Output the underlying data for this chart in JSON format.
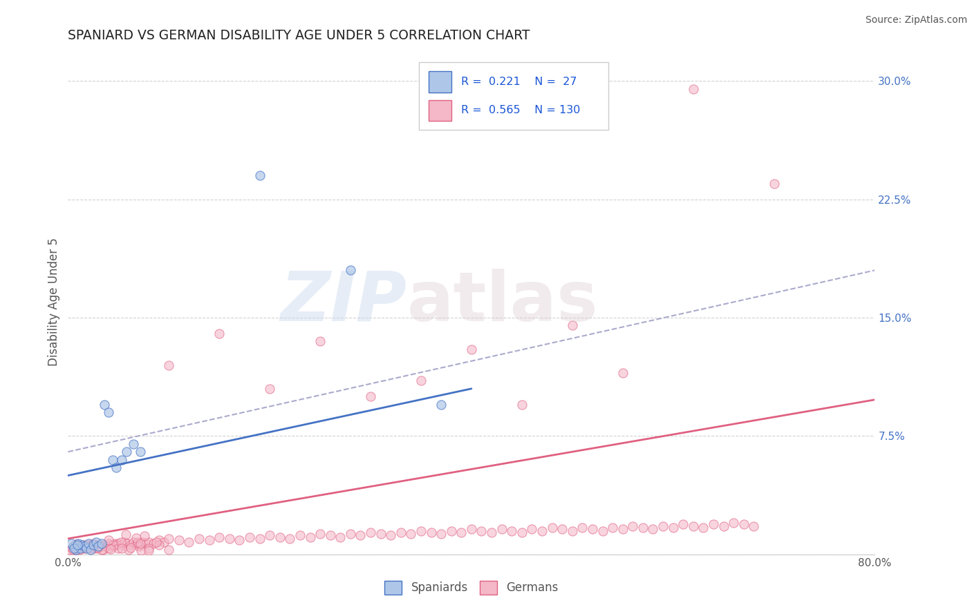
{
  "title": "SPANIARD VS GERMAN DISABILITY AGE UNDER 5 CORRELATION CHART",
  "source": "Source: ZipAtlas.com",
  "ylabel": "Disability Age Under 5",
  "xlim": [
    0.0,
    0.8
  ],
  "ylim": [
    0.0,
    0.32
  ],
  "spaniard_color": "#aec6e8",
  "german_color": "#f4b8c8",
  "spaniard_edge_color": "#4472C4",
  "german_edge_color": "#E06080",
  "spaniard_line_color": "#4472C4",
  "german_line_color": "#E06080",
  "trend_line_color": "#aaaacc",
  "background_color": "#ffffff",
  "grid_color": "#cccccc",
  "spaniard_x": [
    0.005,
    0.008,
    0.01,
    0.012,
    0.014,
    0.016,
    0.018,
    0.02,
    0.022,
    0.025,
    0.028,
    0.03,
    0.033,
    0.036,
    0.04,
    0.044,
    0.048,
    0.053,
    0.058,
    0.065,
    0.072,
    0.003,
    0.006,
    0.009,
    0.19,
    0.28,
    0.37
  ],
  "spaniard_y": [
    0.005,
    0.003,
    0.007,
    0.004,
    0.006,
    0.005,
    0.004,
    0.007,
    0.003,
    0.006,
    0.008,
    0.005,
    0.007,
    0.095,
    0.09,
    0.06,
    0.055,
    0.06,
    0.065,
    0.07,
    0.065,
    0.007,
    0.004,
    0.006,
    0.24,
    0.18,
    0.095
  ],
  "german_x": [
    0.002,
    0.004,
    0.005,
    0.006,
    0.007,
    0.008,
    0.009,
    0.01,
    0.011,
    0.012,
    0.013,
    0.014,
    0.015,
    0.016,
    0.017,
    0.018,
    0.019,
    0.02,
    0.021,
    0.022,
    0.023,
    0.024,
    0.025,
    0.026,
    0.027,
    0.028,
    0.029,
    0.03,
    0.032,
    0.034,
    0.036,
    0.038,
    0.04,
    0.042,
    0.044,
    0.046,
    0.048,
    0.05,
    0.053,
    0.056,
    0.059,
    0.062,
    0.065,
    0.068,
    0.071,
    0.074,
    0.077,
    0.08,
    0.085,
    0.09,
    0.095,
    0.1,
    0.11,
    0.12,
    0.13,
    0.14,
    0.15,
    0.16,
    0.17,
    0.18,
    0.19,
    0.2,
    0.21,
    0.22,
    0.23,
    0.24,
    0.25,
    0.26,
    0.27,
    0.28,
    0.29,
    0.3,
    0.31,
    0.32,
    0.33,
    0.34,
    0.35,
    0.36,
    0.37,
    0.38,
    0.39,
    0.4,
    0.41,
    0.42,
    0.43,
    0.44,
    0.45,
    0.46,
    0.47,
    0.48,
    0.49,
    0.5,
    0.51,
    0.52,
    0.53,
    0.54,
    0.55,
    0.56,
    0.57,
    0.58,
    0.59,
    0.6,
    0.61,
    0.62,
    0.63,
    0.64,
    0.65,
    0.66,
    0.67,
    0.68,
    0.1,
    0.15,
    0.2,
    0.25,
    0.3,
    0.35,
    0.4,
    0.45,
    0.5,
    0.55,
    0.03,
    0.035,
    0.04,
    0.045,
    0.05,
    0.06,
    0.07,
    0.08,
    0.09,
    0.1
  ],
  "german_y": [
    0.003,
    0.004,
    0.003,
    0.005,
    0.004,
    0.003,
    0.005,
    0.004,
    0.006,
    0.004,
    0.005,
    0.004,
    0.006,
    0.005,
    0.004,
    0.006,
    0.005,
    0.004,
    0.006,
    0.005,
    0.004,
    0.006,
    0.005,
    0.004,
    0.006,
    0.005,
    0.004,
    0.005,
    0.006,
    0.005,
    0.006,
    0.005,
    0.007,
    0.006,
    0.005,
    0.007,
    0.006,
    0.007,
    0.006,
    0.008,
    0.007,
    0.006,
    0.008,
    0.007,
    0.006,
    0.008,
    0.007,
    0.008,
    0.007,
    0.009,
    0.008,
    0.01,
    0.009,
    0.008,
    0.01,
    0.009,
    0.011,
    0.01,
    0.009,
    0.011,
    0.01,
    0.012,
    0.011,
    0.01,
    0.012,
    0.011,
    0.013,
    0.012,
    0.011,
    0.013,
    0.012,
    0.014,
    0.013,
    0.012,
    0.014,
    0.013,
    0.015,
    0.014,
    0.013,
    0.015,
    0.014,
    0.016,
    0.015,
    0.014,
    0.016,
    0.015,
    0.014,
    0.016,
    0.015,
    0.017,
    0.016,
    0.015,
    0.017,
    0.016,
    0.015,
    0.017,
    0.016,
    0.018,
    0.017,
    0.016,
    0.018,
    0.017,
    0.019,
    0.018,
    0.017,
    0.019,
    0.018,
    0.02,
    0.019,
    0.018,
    0.12,
    0.14,
    0.105,
    0.135,
    0.1,
    0.11,
    0.13,
    0.095,
    0.145,
    0.115,
    0.005,
    0.003,
    0.004,
    0.006,
    0.004,
    0.003,
    0.005,
    0.004,
    0.006,
    0.003
  ]
}
